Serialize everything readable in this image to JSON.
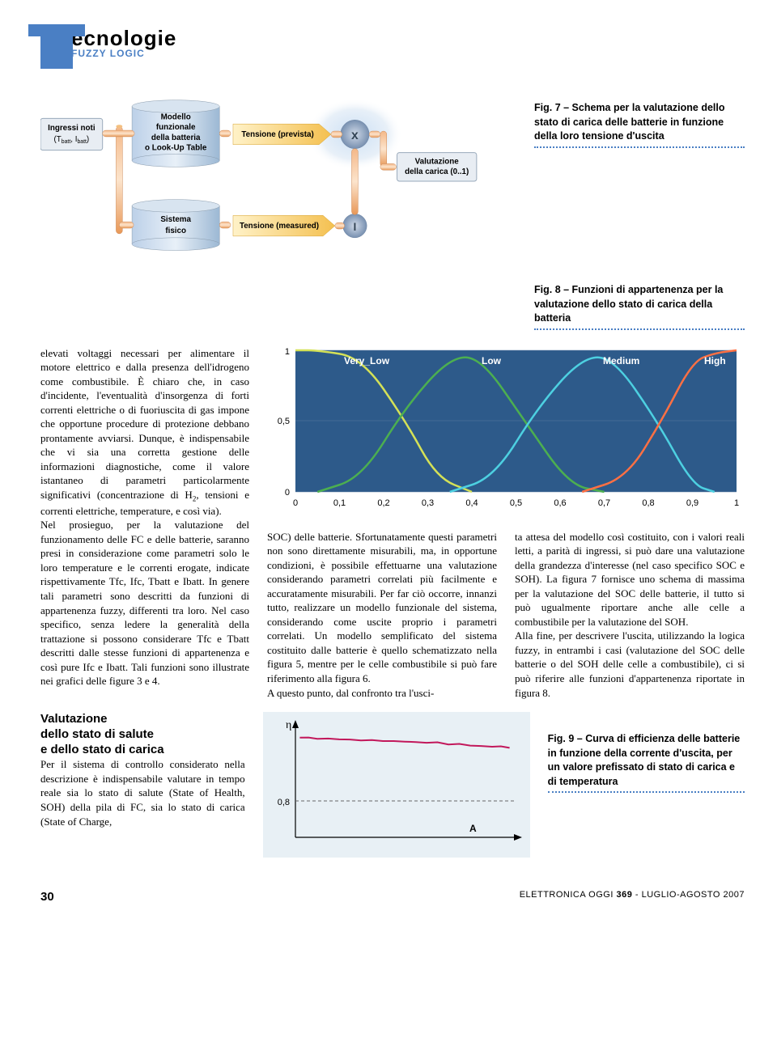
{
  "header": {
    "title": "ecnologie",
    "subtitle": "FUZZY LOGIC"
  },
  "fig7": {
    "caption": "Fig. 7 – Schema per la valutazione dello stato di carica delle batterie in funzione della loro tensione d'uscita",
    "inputs_label": "Ingressi noti",
    "inputs_sub": "(T",
    "inputs_sub2": "batt",
    "inputs_sub3": ", I",
    "inputs_sub4": "batt",
    "inputs_sub5": ")",
    "model_title": "Modello",
    "model_l2": "funzionale",
    "model_l3": "della batteria",
    "model_l4": "o Look-Up Table",
    "system_l1": "Sistema",
    "system_l2": "fisico",
    "tension_prev": "Tensione (prevista)",
    "tension_meas": "Tensione (measured)",
    "x_label": "x",
    "bar_label": "I",
    "eval_l1": "Valutazione",
    "eval_l2": "della carica (0..1)"
  },
  "fig8": {
    "caption": "Fig. 8 – Funzioni di appartenenza per la valutazione dello stato di carica della batteria",
    "type": "membership-functions",
    "background_color": "#2d5a8a",
    "grid_color": "#5a7aa0",
    "labels": [
      "Very_Low",
      "Low",
      "Medium",
      "High"
    ],
    "label_color": "#ffffff",
    "label_fontsize": 11,
    "x_ticks": [
      "0",
      "0,1",
      "0,2",
      "0,3",
      "0,4",
      "0,5",
      "0,6",
      "0,7",
      "0,8",
      "0,9",
      "1"
    ],
    "y_ticks": [
      "0",
      "0,5",
      "1"
    ],
    "curves": [
      {
        "color": "#d4e157",
        "points": [
          [
            0,
            1
          ],
          [
            0.05,
            1
          ],
          [
            0.15,
            0.95
          ],
          [
            0.25,
            0.5
          ],
          [
            0.32,
            0.1
          ],
          [
            0.4,
            0
          ]
        ]
      },
      {
        "color": "#4caf50",
        "points": [
          [
            0.05,
            0
          ],
          [
            0.15,
            0.1
          ],
          [
            0.25,
            0.6
          ],
          [
            0.35,
            0.95
          ],
          [
            0.42,
            0.95
          ],
          [
            0.52,
            0.5
          ],
          [
            0.62,
            0.05
          ],
          [
            0.7,
            0
          ]
        ]
      },
      {
        "color": "#4dd0e1",
        "points": [
          [
            0.35,
            0
          ],
          [
            0.45,
            0.1
          ],
          [
            0.55,
            0.6
          ],
          [
            0.65,
            0.95
          ],
          [
            0.72,
            0.95
          ],
          [
            0.82,
            0.5
          ],
          [
            0.9,
            0.05
          ],
          [
            0.95,
            0
          ]
        ]
      },
      {
        "color": "#ff7043",
        "points": [
          [
            0.65,
            0
          ],
          [
            0.75,
            0.1
          ],
          [
            0.83,
            0.5
          ],
          [
            0.9,
            0.92
          ],
          [
            0.95,
            0.98
          ],
          [
            1,
            1
          ]
        ]
      }
    ],
    "xlim": [
      0,
      1
    ],
    "ylim": [
      0,
      1
    ]
  },
  "fig9": {
    "caption": "Fig. 9 – Curva di efficienza delle batterie in funzione della corrente d'uscita, per un valore prefissato di stato di carica e di temperatura",
    "type": "line",
    "y_axis_label": "η",
    "x_axis_label": "A",
    "dashed_ref": 0.8,
    "y_tick": "0,8",
    "line_color": "#c2185b",
    "background_color": "#e8f0f5",
    "points": [
      [
        0.02,
        0.88
      ],
      [
        0.1,
        0.87
      ],
      [
        0.2,
        0.865
      ],
      [
        0.3,
        0.855
      ],
      [
        0.4,
        0.85
      ],
      [
        0.5,
        0.845
      ],
      [
        0.6,
        0.835
      ],
      [
        0.7,
        0.82
      ],
      [
        0.8,
        0.81
      ],
      [
        0.9,
        0.8
      ],
      [
        0.98,
        0.79
      ]
    ]
  },
  "body": {
    "col1_p1": "elevati voltaggi necessari per alimentare il motore elettrico e dalla presenza dell'idrogeno come combustibile. È chiaro che, in caso d'incidente, l'eventualità d'insorgenza di forti correnti elettriche o di fuoriuscita di gas impone che opportune procedure di protezione debbano prontamente avviarsi. Dunque, è indispensabile che vi sia una corretta gestione delle informazioni diagnostiche, come il valore istantaneo di parametri particolarmente significativi (concentrazione di H",
    "col1_p1b": ", tensioni e correnti elettriche, temperature, e così via).",
    "col1_p2": "Nel prosieguo, per la valutazione del funzionamento delle FC e delle batterie, saranno presi in considerazione come parametri solo le loro temperature e le correnti erogate, indicate rispettivamente Tfc, Ifc, Tbatt e Ibatt. In genere tali parametri sono descritti da funzioni di appartenenza fuzzy, differenti tra loro. Nel caso specifico, senza ledere la generalità della trattazione si possono considerare Tfc e Tbatt descritti dalle stesse funzioni di appartenenza e così pure Ifc e Ibatt. Tali funzioni sono illustrate nei grafici delle figure 3 e 4.",
    "col2_p1": "SOC) delle batterie. Sfortunatamente questi parametri non sono direttamente misurabili, ma, in opportune condizioni, è possibile effettuarne una valutazione considerando parametri correlati più facilmente e accuratamente misurabili. Per far ciò occorre, innanzi tutto, realizzare un modello funzionale del sistema, considerando come uscite proprio i parametri correlati. Un modello semplificato del sistema costituito dalle batterie è quello schematizzato nella figura 5, mentre per le celle combustibile si può fare riferimento alla figura 6.",
    "col2_p2": "A questo punto, dal confronto tra l'usci-",
    "col3_p1": "ta attesa del modello così costituito, con i valori reali letti, a parità di ingressi, si può dare una valutazione della grandezza d'interesse (nel caso specifico SOC e SOH). La figura 7 fornisce uno schema di massima per la valutazione del SOC delle batterie, il tutto si può ugualmente riportare anche alle celle a combustibile per la valutazione del SOH.",
    "col3_p2": "Alla fine, per descrivere l'uscita, utilizzando la logica fuzzy, in entrambi i casi (valutazione del SOC delle batterie o del SOH delle celle a combustibile), ci si può riferire alle funzioni d'appartenenza riportate in figura 8.",
    "bottom_h1": "Valutazione",
    "bottom_h2": "dello stato di salute",
    "bottom_h3": "e dello stato di carica",
    "bottom_p": "Per il sistema di controllo considerato nella descrizione è indispensabile valutare in tempo reale sia lo stato di salute (State of Health, SOH) della pila di FC, sia lo stato di carica (State of Charge,"
  },
  "footer": {
    "page": "30",
    "brand": "ELETTRONICA OGGI",
    "issue": "369",
    "date": "- LUGLIO-AGOSTO 2007"
  }
}
